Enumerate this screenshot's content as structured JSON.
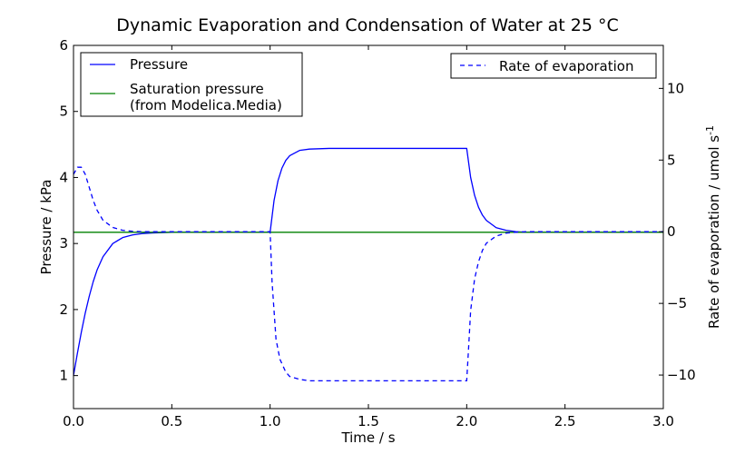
{
  "chart_data": {
    "type": "line",
    "title": "Dynamic Evaporation and Condensation of Water at 25 °C",
    "xlabel": "Time / s",
    "ylabel_left": "Pressure / kPa",
    "ylabel_right": "Rate of evaporation / umol s",
    "ylabel_right_sup": "-1",
    "xlim": [
      0.0,
      3.0
    ],
    "ylim_left": [
      0.5,
      6.0
    ],
    "ylim_right": [
      -12.34,
      13.0
    ],
    "x_ticks": [
      "0.0",
      "0.5",
      "1.0",
      "1.5",
      "2.0",
      "2.5",
      "3.0"
    ],
    "y_left_ticks": [
      "1",
      "2",
      "3",
      "4",
      "5",
      "6"
    ],
    "y_right_ticks": [
      "−10",
      "−5",
      "0",
      "5",
      "10"
    ],
    "grid": false,
    "legend_left": {
      "placement": "top-left",
      "entries": [
        {
          "label": "Pressure",
          "style": "solid",
          "color": "#0000ff"
        },
        {
          "label": "Saturation pressure",
          "label2": "(from Modelica.Media)",
          "style": "solid",
          "color": "#008000"
        }
      ]
    },
    "legend_right": {
      "placement": "top-right",
      "entries": [
        {
          "label": "Rate of evaporation",
          "style": "dashed",
          "color": "#0000ff"
        }
      ]
    },
    "series": [
      {
        "name": "Pressure",
        "axis": "left",
        "color": "#0000ff",
        "style": "solid",
        "x": [
          0.0,
          0.02,
          0.04,
          0.06,
          0.08,
          0.1,
          0.12,
          0.15,
          0.2,
          0.25,
          0.3,
          0.35,
          0.4,
          0.5,
          1.0,
          1.02,
          1.04,
          1.06,
          1.08,
          1.1,
          1.15,
          1.2,
          1.3,
          1.5,
          2.0,
          2.02,
          2.04,
          2.06,
          2.08,
          2.1,
          2.15,
          2.2,
          2.25,
          2.3,
          2.4,
          3.0
        ],
        "values": [
          1.0,
          1.34,
          1.66,
          1.95,
          2.2,
          2.42,
          2.6,
          2.8,
          3.0,
          3.09,
          3.13,
          3.15,
          3.16,
          3.17,
          3.17,
          3.65,
          3.95,
          4.14,
          4.26,
          4.33,
          4.41,
          4.43,
          4.44,
          4.44,
          4.44,
          4.0,
          3.73,
          3.55,
          3.43,
          3.35,
          3.24,
          3.2,
          3.18,
          3.17,
          3.17,
          3.17
        ]
      },
      {
        "name": "Saturation pressure",
        "axis": "left",
        "color": "#008000",
        "style": "solid",
        "x": [
          0.0,
          3.0
        ],
        "values": [
          3.17,
          3.17
        ]
      },
      {
        "name": "Rate of evaporation",
        "axis": "right",
        "color": "#0000ff",
        "style": "dashed",
        "x": [
          0.0,
          0.02,
          0.04,
          0.06,
          0.08,
          0.1,
          0.12,
          0.15,
          0.2,
          0.25,
          0.3,
          0.35,
          0.4,
          0.5,
          1.0,
          1.01,
          1.03,
          1.05,
          1.08,
          1.1,
          1.15,
          1.2,
          1.3,
          1.5,
          2.0,
          2.01,
          2.02,
          2.04,
          2.06,
          2.08,
          2.1,
          2.15,
          2.2,
          2.25,
          2.3,
          2.4,
          3.0
        ],
        "values": [
          4.0,
          4.5,
          4.5,
          4.0,
          3.1,
          2.2,
          1.5,
          0.8,
          0.3,
          0.1,
          0.03,
          0.0,
          0.0,
          0.0,
          0.0,
          -3.5,
          -7.5,
          -8.9,
          -9.8,
          -10.1,
          -10.3,
          -10.4,
          -10.4,
          -10.4,
          -10.4,
          -8.0,
          -5.5,
          -3.3,
          -2.1,
          -1.3,
          -0.8,
          -0.3,
          -0.1,
          -0.03,
          0.0,
          0.0,
          0.0
        ]
      }
    ]
  }
}
